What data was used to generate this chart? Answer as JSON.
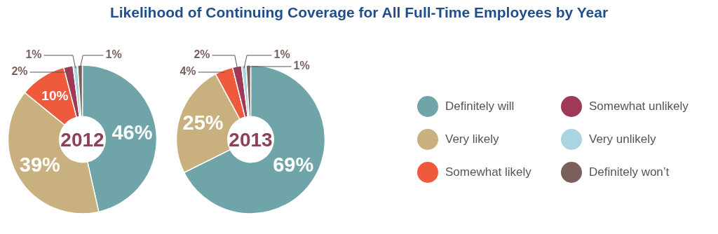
{
  "chart_data": [
    {
      "type": "donut",
      "title": "Likelihood of Continuing Coverage for All Full-Time Employees by Year",
      "annotations": [
        "2012"
      ],
      "categories": [
        "Definitely will",
        "Very likely",
        "Somewhat likely",
        "Somewhat unlikely",
        "Very unlikely",
        "Definitely won’t"
      ],
      "values": [
        46,
        39,
        10,
        2,
        1,
        1
      ],
      "value_labels": [
        "46%",
        "39%",
        "10%",
        "2%",
        "1%",
        "1%"
      ],
      "colors": [
        "#6fa5a9",
        "#c8b07f",
        "#f05a3c",
        "#9e3a55",
        "#a9d4e0",
        "#7a5f5a"
      ],
      "legend": "right"
    },
    {
      "type": "donut",
      "annotations": [
        "2013"
      ],
      "categories": [
        null,
        null,
        null,
        null,
        null,
        null
      ],
      "values": [
        69,
        25,
        4,
        2,
        1,
        1
      ],
      "value_labels": [
        "69%",
        "25%",
        "4%",
        "2%",
        "1%",
        "1%"
      ],
      "colors": [
        "#6fa5a9",
        "#c8b07f",
        "#f05a3c",
        "#9e3a55",
        "#a9d4e0",
        "#7a5f5a"
      ]
    }
  ]
}
